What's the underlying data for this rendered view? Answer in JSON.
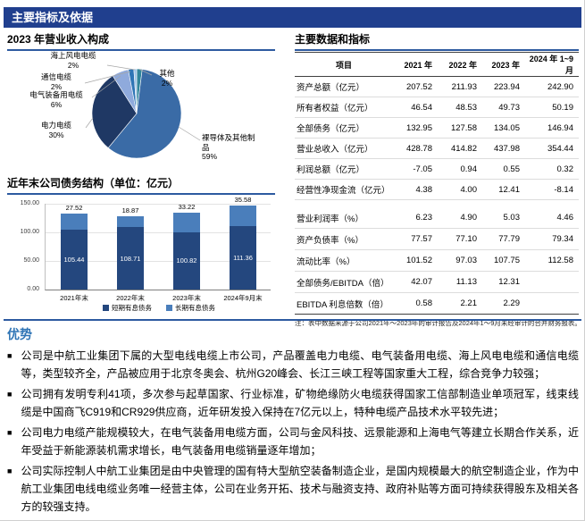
{
  "header": {
    "title": "主要指标及依据"
  },
  "sections": {
    "pie_title": "2023 年营业收入构成",
    "debt_title": "近年末公司债务结构（单位：亿元）",
    "table_title": "主要数据和指标"
  },
  "chart_data": [
    {
      "type": "pie",
      "title": "2023 年营业收入构成",
      "slices": [
        {
          "label": "其他",
          "pct": 2,
          "pct_label": "2%",
          "color": "#31859c"
        },
        {
          "label": "裸导体及其他制品",
          "pct": 59,
          "pct_label": "59%",
          "color": "#3a6ba6"
        },
        {
          "label": "电力电缆",
          "pct": 30,
          "pct_label": "30%",
          "color": "#1f3864"
        },
        {
          "label": "电气装备用电缆",
          "pct": 6,
          "pct_label": "6%",
          "color": "#8faadc"
        },
        {
          "label": "通信电缆",
          "pct": 2,
          "pct_label": "2%",
          "color": "#2e75b6"
        },
        {
          "label": "海上风电电缆",
          "pct": 2,
          "pct_label": "2%",
          "color": "#9dc3e6"
        }
      ],
      "legend_position": "none"
    },
    {
      "type": "bar",
      "stacked": true,
      "title": "近年末公司债务结构（单位：亿元）",
      "categories": [
        "2021年末",
        "2022年末",
        "2023年末",
        "2024年9月末"
      ],
      "series": [
        {
          "name": "短期有息债务",
          "color": "#24477e",
          "values": [
            105.44,
            108.71,
            100.82,
            111.36
          ],
          "labels": [
            "105.44",
            "108.71",
            "100.82",
            "111.36"
          ]
        },
        {
          "name": "长期有息债务",
          "color": "#4a7ebb",
          "values": [
            27.52,
            18.87,
            33.22,
            35.58
          ],
          "labels": [
            "27.52",
            "18.87",
            "33.22",
            "35.58"
          ]
        }
      ],
      "ylim": [
        0,
        150
      ],
      "yticks": [
        "150.00",
        "100.00",
        "50.00",
        "0.00"
      ],
      "grid": true,
      "legend_position": "bottom"
    }
  ],
  "table": {
    "headers": [
      "项目",
      "2021 年",
      "2022 年",
      "2023 年",
      "2024 年 1~9 月"
    ],
    "rows": [
      {
        "label": "资产总额（亿元）",
        "values": [
          "207.52",
          "211.93",
          "223.94",
          "242.90"
        ]
      },
      {
        "label": "所有者权益（亿元）",
        "values": [
          "46.54",
          "48.53",
          "49.73",
          "50.19"
        ]
      },
      {
        "label": "全部债务（亿元）",
        "values": [
          "132.95",
          "127.58",
          "134.05",
          "146.94"
        ]
      },
      {
        "label": "营业总收入（亿元）",
        "values": [
          "428.78",
          "414.82",
          "437.98",
          "354.44"
        ]
      },
      {
        "label": "利润总额（亿元）",
        "values": [
          "-7.05",
          "0.94",
          "0.55",
          "0.32"
        ]
      },
      {
        "label": "经营性净现金流（亿元）",
        "values": [
          "4.38",
          "4.00",
          "12.41",
          "-8.14"
        ]
      },
      {
        "label": "营业利润率（%）",
        "values": [
          "6.23",
          "4.90",
          "5.03",
          "4.46"
        ]
      },
      {
        "label": "资产负债率（%）",
        "values": [
          "77.57",
          "77.10",
          "77.79",
          "79.34"
        ]
      },
      {
        "label": "流动比率（%）",
        "values": [
          "101.52",
          "97.03",
          "107.75",
          "112.58"
        ]
      },
      {
        "label": "全部债务/EBITDA（倍）",
        "values": [
          "42.07",
          "11.13",
          "12.31",
          ""
        ]
      },
      {
        "label": "EBITDA 利息倍数（倍）",
        "values": [
          "0.58",
          "2.21",
          "2.29",
          ""
        ]
      }
    ],
    "note": "注：表中数据来源于公司2021年～2023年的审计报告及2024年1～9月未经审计的合并财务报表。"
  },
  "advantages": {
    "title": "优势",
    "items": [
      "公司是中航工业集团下属的大型电线电缆上市公司，产品覆盖电力电缆、电气装备用电缆、海上风电电缆和通信电缆等，类型较齐全，产品被应用于北京冬奥会、杭州G20峰会、长江三峡工程等国家重大工程，综合竞争力较强；",
      "公司拥有发明专利41项，多次参与起草国家、行业标准，矿物绝缘防火电缆获得国家工信部制造业单项冠军，线束线缆是中国商飞C919和CR929供应商，近年研发投入保持在7亿元以上，特种电缆产品技术水平较先进；",
      "公司电力电缆产能规模较大，在电气装备用电缆方面，公司与金风科技、远景能源和上海电气等建立长期合作关系，近年受益于新能源装机需求增长，电气装备用电缆销量逐年增加；",
      "公司实际控制人中航工业集团是由中央管理的国有特大型航空装备制造企业，是国内规模最大的航空制造企业，作为中航工业集团电线电缆业务唯一经营主体，公司在业务开拓、技术与融资支持、政府补贴等方面可持续获得股东及相关各方的较强支持。"
    ]
  },
  "colors": {
    "header_bar": "#203f8e",
    "rule_blue": "#2d5aa0",
    "advantage_title_blue": "#2e74b5"
  }
}
